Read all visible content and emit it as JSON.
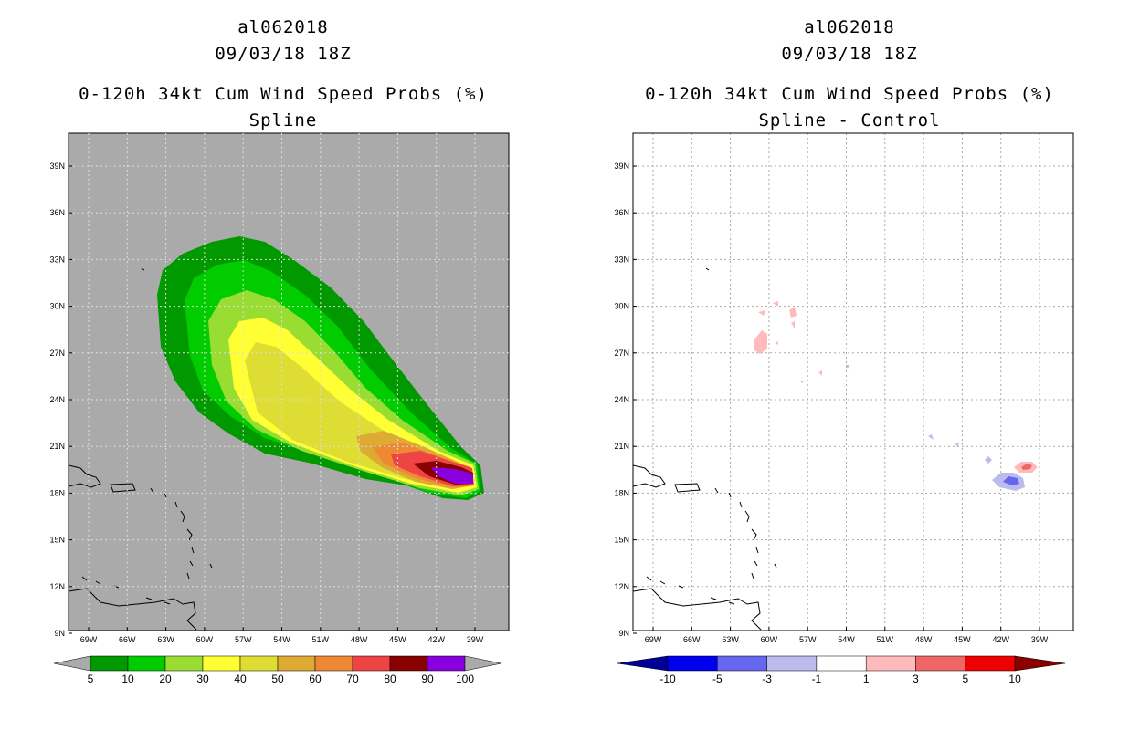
{
  "left_panel": {
    "storm_id": "al062018",
    "datetime": "09/03/18 18Z",
    "product": "0-120h 34kt Cum Wind Speed Probs (%)",
    "subtitle": "Spline",
    "background_color": "#aaaaaa",
    "colorbar": {
      "labels": [
        "5",
        "10",
        "20",
        "30",
        "40",
        "50",
        "60",
        "70",
        "80",
        "90",
        "100"
      ],
      "colors": [
        "#009900",
        "#00cc00",
        "#99dd33",
        "#ffff33",
        "#dddd33",
        "#ddaa33",
        "#ee8833",
        "#ee4444",
        "#880000",
        "#8800dd"
      ]
    }
  },
  "right_panel": {
    "storm_id": "al062018",
    "datetime": "09/03/18 18Z",
    "product": "0-120h 34kt Cum Wind Speed Probs (%)",
    "subtitle": "Spline - Control",
    "background_color": "#ffffff",
    "colorbar": {
      "labels": [
        "-10",
        "-5",
        "-3",
        "-1",
        "1",
        "3",
        "5",
        "10"
      ],
      "colors": [
        "#000099",
        "#0000ee",
        "#6666ee",
        "#bbbbee",
        "#ffffff",
        "#ffbbbb",
        "#ee6666",
        "#ee0000",
        "#880000"
      ]
    }
  },
  "axes": {
    "lat_labels": [
      "39N",
      "36N",
      "33N",
      "30N",
      "27N",
      "24N",
      "21N",
      "18N",
      "15N",
      "12N",
      "9N"
    ],
    "lon_labels": [
      "69W",
      "66W",
      "63W",
      "60W",
      "57W",
      "54W",
      "51W",
      "48W",
      "45W",
      "42W",
      "39W"
    ]
  }
}
